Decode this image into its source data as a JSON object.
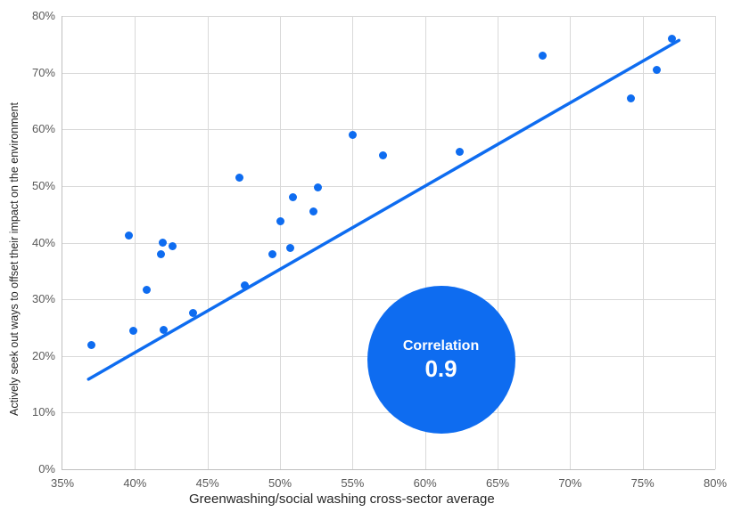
{
  "chart_data": {
    "type": "scatter",
    "title": "",
    "xlabel": "Greenwashing/social washing cross-sector average",
    "ylabel": "Actively seek out ways to offset their impact on the environment",
    "xlim": [
      35,
      80
    ],
    "ylim": [
      0,
      80
    ],
    "grid": true,
    "legend": "none",
    "x_tick_values": [
      35,
      40,
      45,
      50,
      55,
      60,
      65,
      70,
      75,
      80
    ],
    "x_tick_labels": [
      "35%",
      "40%",
      "45%",
      "50%",
      "55%",
      "60%",
      "65%",
      "70%",
      "75%",
      "80%"
    ],
    "y_tick_values": [
      0,
      10,
      20,
      30,
      40,
      50,
      60,
      70,
      80
    ],
    "y_tick_labels": [
      "0%",
      "10%",
      "20%",
      "30%",
      "40%",
      "50%",
      "60%",
      "70%",
      "80%"
    ],
    "points": [
      [
        37.0,
        22.0
      ],
      [
        39.6,
        41.3
      ],
      [
        39.9,
        24.5
      ],
      [
        40.8,
        31.7
      ],
      [
        41.8,
        38.0
      ],
      [
        41.9,
        40.0
      ],
      [
        42.0,
        24.6
      ],
      [
        42.6,
        39.4
      ],
      [
        44.0,
        27.6
      ],
      [
        47.2,
        51.4
      ],
      [
        47.6,
        32.4
      ],
      [
        49.5,
        37.9
      ],
      [
        50.0,
        43.7
      ],
      [
        50.7,
        39.0
      ],
      [
        50.9,
        48.0
      ],
      [
        52.3,
        45.5
      ],
      [
        52.6,
        49.7
      ],
      [
        55.0,
        59.0
      ],
      [
        57.1,
        55.4
      ],
      [
        62.4,
        56.0
      ],
      [
        68.1,
        73.0
      ],
      [
        74.2,
        65.4
      ],
      [
        76.0,
        70.5
      ],
      [
        77.0,
        76.0
      ]
    ],
    "trendline": {
      "x1": 36.8,
      "y1": 15.9,
      "x2": 77.5,
      "y2": 75.7
    },
    "annotation": {
      "label": "Correlation",
      "value": "0.9",
      "x": 61.1,
      "y": 19.4
    },
    "colors": {
      "accent": "#0e6cf0",
      "grid": "#d9d9d9",
      "axis": "#bfbfbf",
      "tick_text": "#595959",
      "axis_title_text": "#262626",
      "annotation_text": "#ffffff"
    }
  }
}
